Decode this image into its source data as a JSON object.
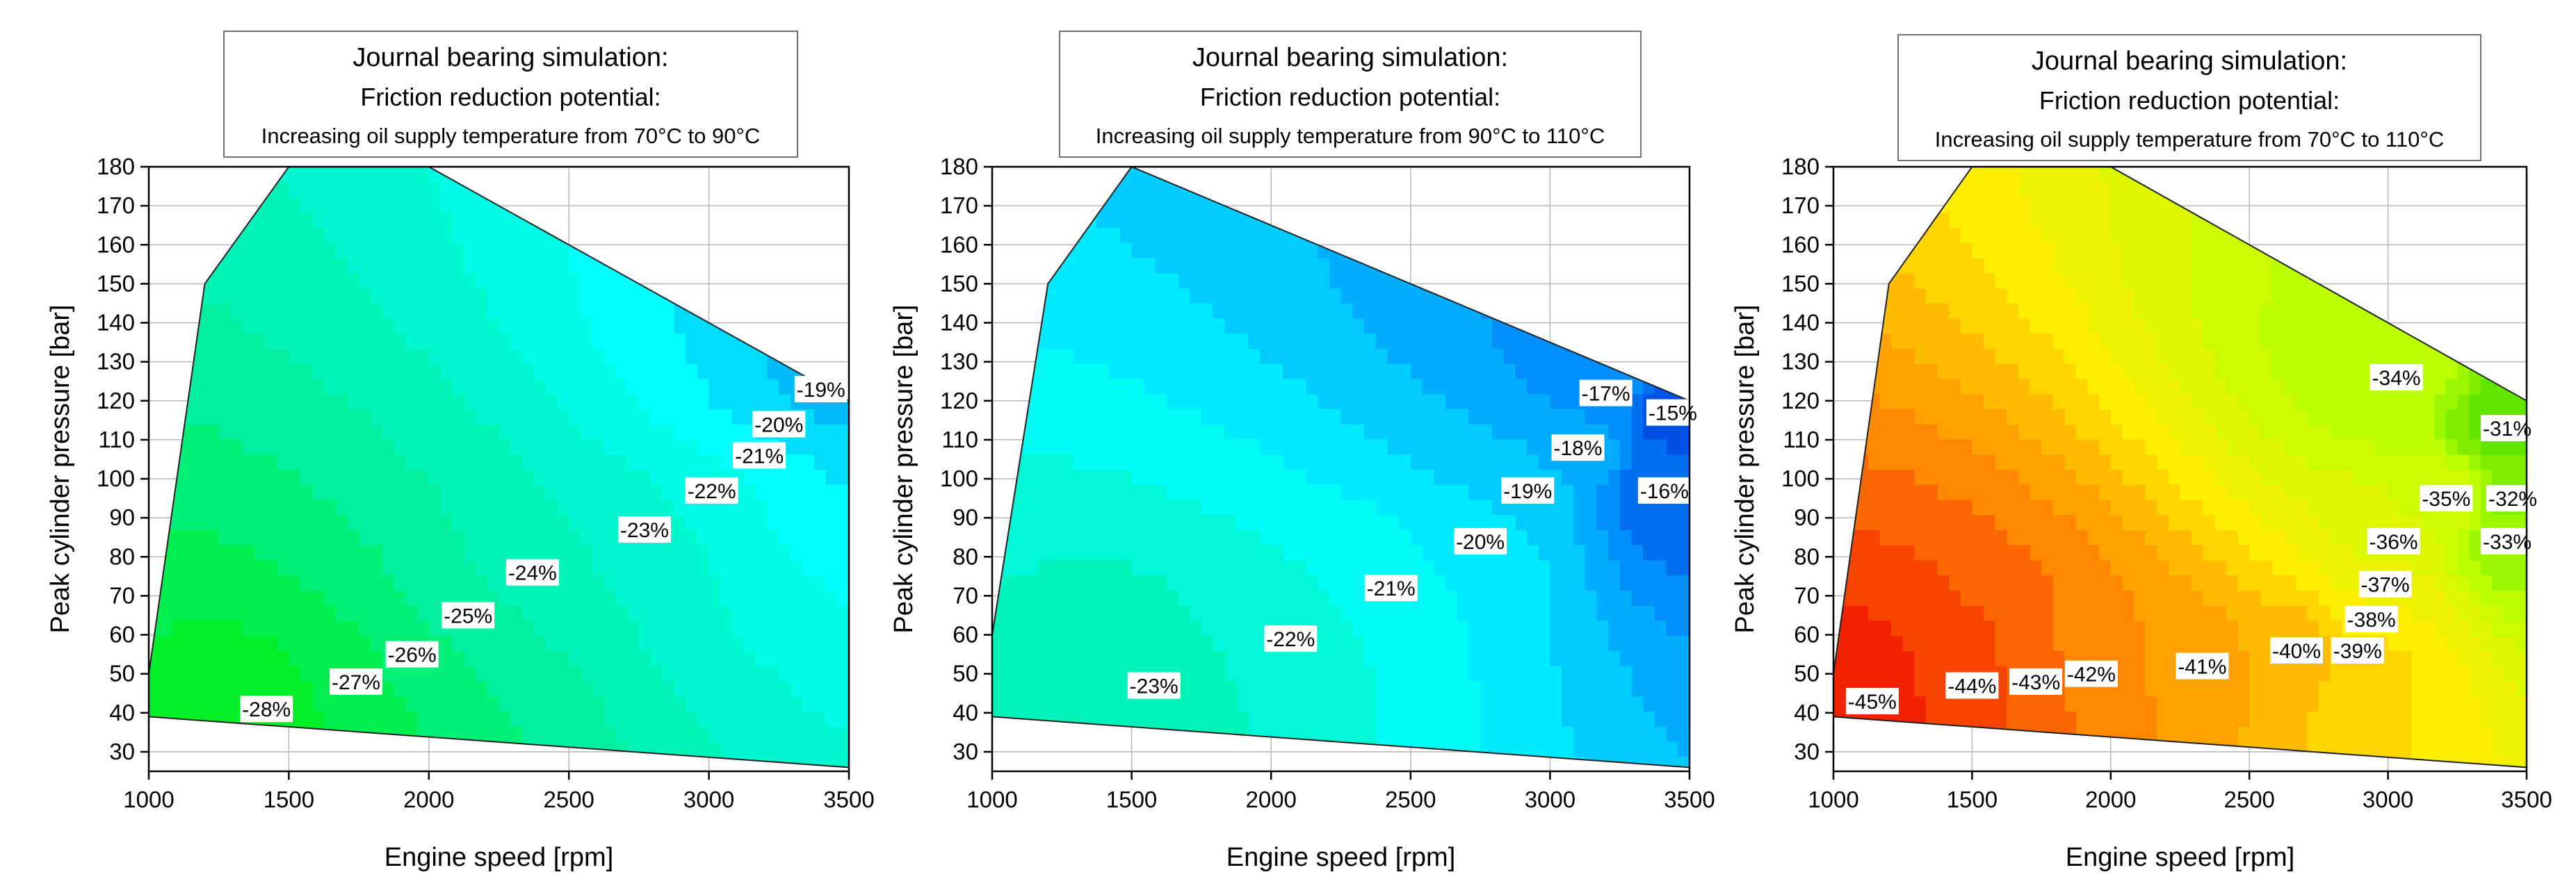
{
  "chart_data": [
    {
      "type": "contour",
      "title_lines": [
        "Journal bearing simulation:",
        "Friction reduction potential:",
        "Increasing oil supply temperature from 70°C to 90°C"
      ],
      "xlabel": "Engine speed [rpm]",
      "ylabel": "Peak cylinder pressure [bar]",
      "xlim": [
        1000,
        3500
      ],
      "ylim": [
        25,
        180
      ],
      "x_ticks": [
        1000,
        1500,
        2000,
        2500,
        3000,
        3500
      ],
      "y_ticks": [
        30,
        40,
        50,
        60,
        70,
        80,
        90,
        100,
        110,
        120,
        130,
        140,
        150,
        160,
        170,
        180
      ],
      "x_tick_labels": [
        "1000",
        "1500",
        "2000",
        "2500",
        "3000",
        "3500"
      ],
      "y_tick_labels": [
        "30",
        "40",
        "50",
        "60",
        "70",
        "80",
        "90",
        "100",
        "110",
        "120",
        "130",
        "140",
        "150",
        "160",
        "170",
        "180"
      ],
      "grid": true,
      "colormap": [
        "#00ee00",
        "#00f0a0",
        "#00ffff",
        "#0077ee"
      ],
      "value_range": [
        -29,
        -17
      ],
      "domain_boundary": [
        [
          1000,
          39
        ],
        [
          3500,
          26
        ],
        [
          3500,
          120
        ],
        [
          2000,
          180
        ],
        [
          1500,
          180
        ],
        [
          1200,
          150
        ],
        [
          1000,
          50
        ]
      ],
      "contour_labels": [
        {
          "x": 1420,
          "y": 41,
          "text": "-28%"
        },
        {
          "x": 1740,
          "y": 48,
          "text": "-27%"
        },
        {
          "x": 1940,
          "y": 55,
          "text": "-26%"
        },
        {
          "x": 2140,
          "y": 65,
          "text": "-25%"
        },
        {
          "x": 2370,
          "y": 76,
          "text": "-24%"
        },
        {
          "x": 2770,
          "y": 87,
          "text": "-23%"
        },
        {
          "x": 3010,
          "y": 97,
          "text": "-22%"
        },
        {
          "x": 3180,
          "y": 106,
          "text": "-21%"
        },
        {
          "x": 3250,
          "y": 114,
          "text": "-20%"
        },
        {
          "x": 3400,
          "y": 123,
          "text": "-19%"
        }
      ]
    },
    {
      "type": "contour",
      "title_lines": [
        "Journal bearing simulation:",
        "Friction reduction potential:",
        "Increasing oil supply temperature from 90°C to 110°C"
      ],
      "xlabel": "Engine speed [rpm]",
      "ylabel": "Peak cylinder pressure [bar]",
      "xlim": [
        1000,
        3500
      ],
      "ylim": [
        25,
        180
      ],
      "x_ticks": [
        1000,
        1500,
        2000,
        2500,
        3000,
        3500
      ],
      "y_ticks": [
        30,
        40,
        50,
        60,
        70,
        80,
        90,
        100,
        110,
        120,
        130,
        140,
        150,
        160,
        170,
        180
      ],
      "x_tick_labels": [
        "1000",
        "1500",
        "2000",
        "2500",
        "3000",
        "3500"
      ],
      "y_tick_labels": [
        "30",
        "40",
        "50",
        "60",
        "70",
        "80",
        "90",
        "100",
        "110",
        "120",
        "130",
        "140",
        "150",
        "160",
        "170",
        "180"
      ],
      "grid": true,
      "colormap": [
        "#00ee99",
        "#00ffff",
        "#0099ff",
        "#0033dd"
      ],
      "value_range": [
        -24,
        -14
      ],
      "domain_boundary": [
        [
          1000,
          39
        ],
        [
          3500,
          26
        ],
        [
          3500,
          120
        ],
        [
          1500,
          180
        ],
        [
          1200,
          150
        ],
        [
          1000,
          60
        ]
      ],
      "contour_labels": [
        {
          "x": 1580,
          "y": 47,
          "text": "-23%"
        },
        {
          "x": 2070,
          "y": 59,
          "text": "-22%"
        },
        {
          "x": 2430,
          "y": 72,
          "text": "-21%"
        },
        {
          "x": 2750,
          "y": 84,
          "text": "-20%"
        },
        {
          "x": 2920,
          "y": 97,
          "text": "-19%"
        },
        {
          "x": 3100,
          "y": 108,
          "text": "-18%"
        },
        {
          "x": 3200,
          "y": 122,
          "text": "-17%"
        },
        {
          "x": 3410,
          "y": 97,
          "text": "-16%"
        },
        {
          "x": 3440,
          "y": 117,
          "text": "-15%"
        }
      ]
    },
    {
      "type": "contour",
      "title_lines": [
        "Journal bearing simulation:",
        "Friction reduction potential:",
        "Increasing oil supply temperature from 70°C to 110°C"
      ],
      "xlabel": "Engine speed [rpm]",
      "ylabel": "Peak cylinder pressure [bar]",
      "xlim": [
        1000,
        3500
      ],
      "ylim": [
        25,
        180
      ],
      "x_ticks": [
        1000,
        1500,
        2000,
        2500,
        3000,
        3500
      ],
      "y_ticks": [
        30,
        40,
        50,
        60,
        70,
        80,
        90,
        100,
        110,
        120,
        130,
        140,
        150,
        160,
        170,
        180
      ],
      "x_tick_labels": [
        "1000",
        "1500",
        "2000",
        "2500",
        "3000",
        "3500"
      ],
      "y_tick_labels": [
        "30",
        "40",
        "50",
        "60",
        "70",
        "80",
        "90",
        "100",
        "110",
        "120",
        "130",
        "140",
        "150",
        "160",
        "170",
        "180"
      ],
      "grid": true,
      "colormap": [
        "#ee0000",
        "#ff8800",
        "#ffee00",
        "#bbff00",
        "#44dd00"
      ],
      "value_range": [
        -46,
        -30
      ],
      "domain_boundary": [
        [
          1000,
          39
        ],
        [
          3500,
          26
        ],
        [
          3500,
          120
        ],
        [
          2000,
          180
        ],
        [
          1500,
          180
        ],
        [
          1200,
          150
        ],
        [
          1000,
          50
        ]
      ],
      "contour_labels": [
        {
          "x": 1140,
          "y": 43,
          "text": "-45%"
        },
        {
          "x": 1500,
          "y": 47,
          "text": "-44%"
        },
        {
          "x": 1730,
          "y": 48,
          "text": "-43%"
        },
        {
          "x": 1930,
          "y": 50,
          "text": "-42%"
        },
        {
          "x": 2330,
          "y": 52,
          "text": "-41%"
        },
        {
          "x": 2670,
          "y": 56,
          "text": "-40%"
        },
        {
          "x": 2890,
          "y": 56,
          "text": "-39%"
        },
        {
          "x": 2940,
          "y": 64,
          "text": "-38%"
        },
        {
          "x": 2990,
          "y": 73,
          "text": "-37%"
        },
        {
          "x": 3020,
          "y": 84,
          "text": "-36%"
        },
        {
          "x": 3210,
          "y": 95,
          "text": "-35%"
        },
        {
          "x": 3030,
          "y": 126,
          "text": "-34%"
        },
        {
          "x": 3430,
          "y": 84,
          "text": "-33%"
        },
        {
          "x": 3450,
          "y": 95,
          "text": "-32%"
        },
        {
          "x": 3430,
          "y": 113,
          "text": "-31%"
        }
      ]
    }
  ]
}
